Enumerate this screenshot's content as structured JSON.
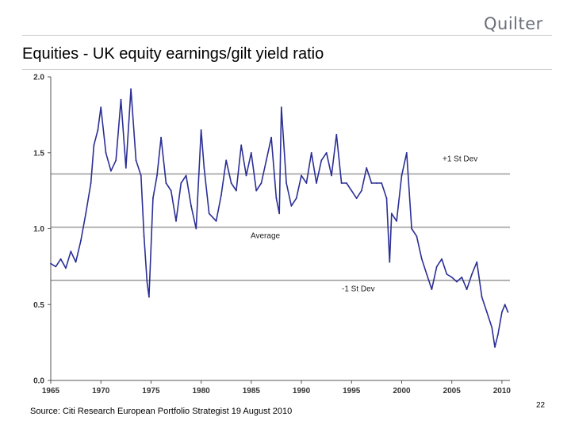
{
  "brand": {
    "name": "Quilter"
  },
  "slide": {
    "title": "Equities - UK equity earnings/gilt yield ratio",
    "source": "Source: Citi Research European Portfolio Strategist 19 August 2010",
    "page_number": "22"
  },
  "chart_data": {
    "type": "line",
    "title": "",
    "xlabel": "",
    "ylabel": "",
    "xlim": [
      1965,
      2010.8
    ],
    "ylim": [
      0.0,
      2.0
    ],
    "x_ticks": [
      "1965",
      "1970",
      "1975",
      "1980",
      "1985",
      "1990",
      "1995",
      "2000",
      "2005",
      "2010"
    ],
    "y_ticks": [
      "0.0",
      "0.5",
      "1.0",
      "1.5",
      "2.0"
    ],
    "grid": false,
    "reference_lines": [
      {
        "label": "+1 St Dev",
        "value": 1.36
      },
      {
        "label": "Average",
        "value": 1.01
      },
      {
        "label": "-1 St Dev",
        "value": 0.66
      }
    ],
    "series": [
      {
        "color": "#2b2f94",
        "x": [
          1965.0,
          1965.5,
          1966.0,
          1966.5,
          1967.0,
          1967.5,
          1968.0,
          1968.5,
          1969.0,
          1969.3,
          1969.7,
          1970.0,
          1970.5,
          1971.0,
          1971.5,
          1972.0,
          1972.5,
          1973.0,
          1973.5,
          1974.0,
          1974.3,
          1974.6,
          1974.8,
          1975.2,
          1975.6,
          1976.0,
          1976.5,
          1977.0,
          1977.5,
          1978.0,
          1978.5,
          1979.0,
          1979.5,
          1980.0,
          1980.3,
          1980.8,
          1981.5,
          1982.0,
          1982.5,
          1983.0,
          1983.5,
          1984.0,
          1984.5,
          1985.0,
          1985.5,
          1986.0,
          1986.5,
          1987.0,
          1987.5,
          1987.8,
          1988.0,
          1988.5,
          1989.0,
          1989.5,
          1990.0,
          1990.5,
          1991.0,
          1991.5,
          1992.0,
          1992.5,
          1993.0,
          1993.5,
          1994.0,
          1994.5,
          1995.0,
          1995.5,
          1996.0,
          1996.5,
          1997.0,
          1997.5,
          1998.0,
          1998.5,
          1998.8,
          1999.0,
          1999.5,
          2000.0,
          2000.5,
          2001.0,
          2001.5,
          2002.0,
          2002.5,
          2003.0,
          2003.5,
          2004.0,
          2004.5,
          2005.0,
          2005.5,
          2006.0,
          2006.5,
          2007.0,
          2007.5,
          2008.0,
          2008.5,
          2009.0,
          2009.3,
          2009.6,
          2010.0,
          2010.3,
          2010.6
        ],
        "y": [
          0.77,
          0.75,
          0.8,
          0.74,
          0.85,
          0.78,
          0.92,
          1.1,
          1.3,
          1.55,
          1.65,
          1.8,
          1.5,
          1.38,
          1.45,
          1.85,
          1.4,
          1.92,
          1.45,
          1.35,
          0.95,
          0.65,
          0.55,
          1.2,
          1.35,
          1.6,
          1.3,
          1.25,
          1.05,
          1.3,
          1.35,
          1.15,
          1.0,
          1.65,
          1.4,
          1.1,
          1.05,
          1.22,
          1.45,
          1.3,
          1.25,
          1.55,
          1.35,
          1.5,
          1.25,
          1.3,
          1.45,
          1.6,
          1.2,
          1.1,
          1.8,
          1.3,
          1.15,
          1.2,
          1.35,
          1.3,
          1.5,
          1.3,
          1.45,
          1.5,
          1.35,
          1.62,
          1.3,
          1.3,
          1.25,
          1.2,
          1.25,
          1.4,
          1.3,
          1.3,
          1.3,
          1.2,
          0.78,
          1.1,
          1.05,
          1.35,
          1.5,
          1.0,
          0.95,
          0.8,
          0.7,
          0.6,
          0.75,
          0.8,
          0.7,
          0.68,
          0.65,
          0.68,
          0.6,
          0.7,
          0.78,
          0.55,
          0.45,
          0.35,
          0.22,
          0.3,
          0.45,
          0.5,
          0.45
        ]
      }
    ]
  }
}
